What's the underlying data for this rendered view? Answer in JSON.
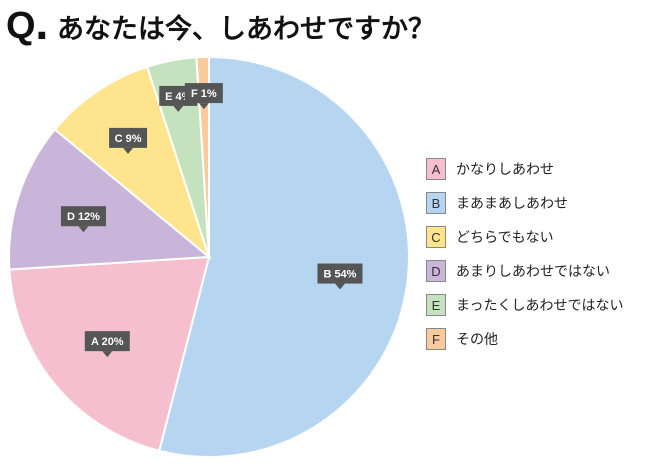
{
  "header": {
    "q_mark": "Q",
    "q_dot": ".",
    "title": "あなたは今、しあわせですか？"
  },
  "chart_data": {
    "type": "pie",
    "title": "あなたは今、しあわせですか？",
    "start_angle_deg": 0,
    "direction": "clockwise",
    "legend_position": "right",
    "slices": [
      {
        "key": "B",
        "label": "まあまあしあわせ",
        "value": 54,
        "color": "#b5d5f0",
        "tag": "B 54%"
      },
      {
        "key": "A",
        "label": "かなりしあわせ",
        "value": 20,
        "color": "#f5bfcf",
        "tag": "A 20%"
      },
      {
        "key": "D",
        "label": "あまりしあわせではない",
        "value": 12,
        "color": "#c9b4da",
        "tag": "D 12%"
      },
      {
        "key": "C",
        "label": "どちらでもない",
        "value": 9,
        "color": "#fde48d",
        "tag": "C 9%"
      },
      {
        "key": "E",
        "label": "まったくしあわせではない",
        "value": 4,
        "color": "#c3e2bd",
        "tag": "E 4%"
      },
      {
        "key": "F",
        "label": "その他",
        "value": 1,
        "color": "#f8ca9c",
        "tag": "F 1%"
      }
    ],
    "legend_order": [
      "A",
      "B",
      "C",
      "D",
      "E",
      "F"
    ]
  },
  "style": {
    "tag_bg": "#555555",
    "tag_text": "#ffffff",
    "slice_stroke": "#ffffff"
  }
}
